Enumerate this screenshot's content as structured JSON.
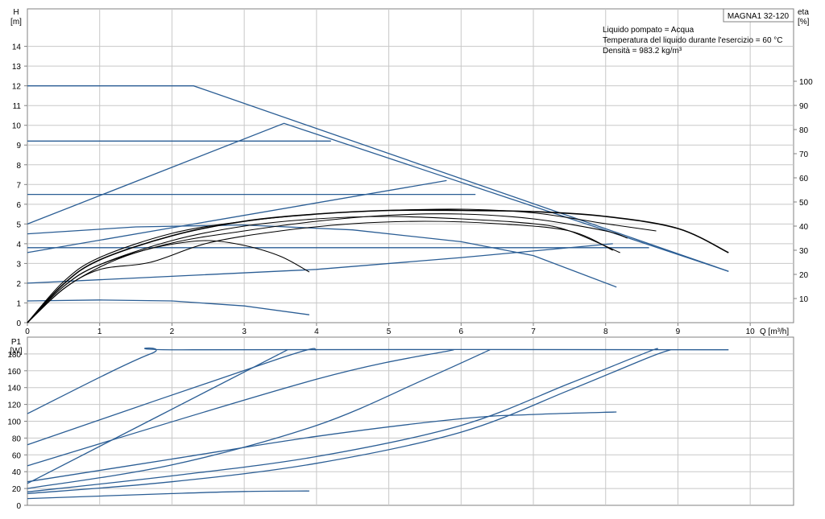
{
  "model_label": "MAGNA1 32-120",
  "info_lines": [
    "Liquido pompato = Acqua",
    "Temperatura del liquido durante l'esercizio = 60 °C",
    "Densità = 983.2 kg/m³"
  ],
  "colors": {
    "blue": "#2a5d94",
    "black": "#000000",
    "grid": "#c8c8c8",
    "frame": "#808080"
  },
  "chart_data": [
    {
      "type": "line",
      "title": "",
      "ylabel_lines": [
        "H",
        "[m]"
      ],
      "y2label_lines": [
        "eta",
        "[%]"
      ],
      "xlabel": "Q [m³/h]",
      "xlim": [
        0,
        10.6
      ],
      "ylim": [
        0,
        15.9
      ],
      "y2lim": [
        0,
        130
      ],
      "x_ticks": [
        "0",
        "1",
        "2",
        "3",
        "4",
        "5",
        "6",
        "7",
        "8",
        "9",
        "10"
      ],
      "y_ticks": [
        "0",
        "1",
        "2",
        "3",
        "4",
        "5",
        "6",
        "7",
        "8",
        "9",
        "10",
        "11",
        "12",
        "13",
        "14"
      ],
      "y2_ticks": [
        "10",
        "20",
        "30",
        "40",
        "50",
        "60",
        "70",
        "80",
        "90",
        "100"
      ],
      "grid": true,
      "head_curves": [
        {
          "points": [
            [
              0,
              12.0
            ],
            [
              2.3,
              12.0
            ],
            [
              9.7,
              2.6
            ]
          ]
        },
        {
          "points": [
            [
              0,
              9.2
            ],
            [
              4.2,
              9.2
            ]
          ]
        },
        {
          "points": [
            [
              0,
              5.0
            ],
            [
              3.55,
              10.1
            ],
            [
              9.7,
              2.6
            ]
          ]
        },
        {
          "points": [
            [
              0,
              6.5
            ],
            [
              6.2,
              6.5
            ]
          ]
        },
        {
          "points": [
            [
              0,
              3.55
            ],
            [
              5.8,
              7.2
            ]
          ]
        },
        {
          "points": [
            [
              0,
              4.5
            ],
            [
              1.5,
              4.85
            ],
            [
              3,
              4.95
            ],
            [
              4.5,
              4.7
            ],
            [
              6,
              4.1
            ],
            [
              7,
              3.4
            ],
            [
              8.15,
              1.8
            ]
          ]
        },
        {
          "points": [
            [
              0,
              3.8
            ],
            [
              8.6,
              3.8
            ]
          ]
        },
        {
          "points": [
            [
              0,
              2.0
            ],
            [
              4,
              2.7
            ],
            [
              6,
              3.3
            ],
            [
              8.1,
              4.0
            ]
          ]
        },
        {
          "points": [
            [
              0,
              1.1
            ],
            [
              1,
              1.15
            ],
            [
              2,
              1.1
            ],
            [
              3,
              0.85
            ],
            [
              3.9,
              0.4
            ]
          ]
        }
      ],
      "efficiency_curves": [
        {
          "points": [
            [
              0,
              0
            ],
            [
              0.5,
              14
            ],
            [
              1,
              23
            ],
            [
              1.5,
              29
            ],
            [
              2,
              32.5
            ],
            [
              2.5,
              34
            ],
            [
              3,
              32
            ],
            [
              3.5,
              27.5
            ],
            [
              3.9,
              21
            ]
          ]
        },
        {
          "points": [
            [
              0,
              0
            ],
            [
              0.5,
              15
            ],
            [
              1,
              24
            ],
            [
              2,
              34
            ],
            [
              3,
              40
            ],
            [
              4,
              43
            ],
            [
              5,
              44
            ],
            [
              6,
              43
            ],
            [
              7,
              41
            ],
            [
              7.5,
              38
            ],
            [
              8.2,
              29
            ]
          ]
        },
        {
          "points": [
            [
              0,
              0
            ],
            [
              0.5,
              17
            ],
            [
              1,
              27
            ],
            [
              2,
              37
            ],
            [
              3,
              42
            ],
            [
              4,
              45
            ],
            [
              5,
              46.5
            ],
            [
              6,
              47
            ],
            [
              7,
              45.5
            ],
            [
              8,
              41
            ],
            [
              8.7,
              38
            ]
          ]
        },
        {
          "points": [
            [
              0,
              0
            ],
            [
              0.5,
              16
            ],
            [
              1,
              26
            ],
            [
              2,
              36
            ],
            [
              3,
              42
            ],
            [
              4,
              45
            ],
            [
              5,
              46.5
            ],
            [
              6,
              46.5
            ],
            [
              7,
              46
            ],
            [
              8,
              44
            ],
            [
              9,
              39
            ],
            [
              9.7,
              29
            ]
          ]
        },
        {
          "points": [
            [
              0,
              0
            ],
            [
              0.5,
              15
            ],
            [
              1,
              24
            ],
            [
              2,
              33
            ],
            [
              3,
              38
            ],
            [
              4,
              42
            ],
            [
              5,
              44.5
            ],
            [
              6,
              45
            ],
            [
              7,
              43
            ],
            [
              8,
              38
            ],
            [
              8.3,
              35
            ]
          ]
        },
        {
          "points": [
            [
              0,
              0
            ],
            [
              0.5,
              14
            ],
            [
              1,
              22
            ],
            [
              1.7,
              25
            ],
            [
              2.5,
              33
            ],
            [
              3.5,
              38
            ],
            [
              4.5,
              41
            ],
            [
              5.5,
              42
            ],
            [
              6.5,
              41
            ],
            [
              7.5,
              38
            ],
            [
              8.1,
              30
            ]
          ]
        }
      ]
    },
    {
      "type": "line",
      "title": "",
      "ylabel_lines": [
        "P1",
        "[W]"
      ],
      "xlim": [
        0,
        10.6
      ],
      "ylim": [
        0,
        200
      ],
      "y_ticks": [
        "0",
        "20",
        "40",
        "60",
        "80",
        "100",
        "120",
        "140",
        "160",
        "180"
      ],
      "grid": true,
      "power_curves": [
        {
          "points": [
            [
              0,
              109
            ],
            [
              1.7,
              180
            ],
            [
              2.3,
              185
            ],
            [
              9.7,
              185
            ]
          ]
        },
        {
          "points": [
            [
              0,
              72
            ],
            [
              3.5,
              175
            ],
            [
              4.0,
              185
            ]
          ]
        },
        {
          "points": [
            [
              0,
              47
            ],
            [
              4.0,
              150
            ],
            [
              5.9,
              185
            ]
          ]
        },
        {
          "points": [
            [
              0,
              26
            ],
            [
              3.6,
              185
            ]
          ]
        },
        {
          "points": [
            [
              0,
              20
            ],
            [
              2,
              48
            ],
            [
              4,
              95
            ],
            [
              5.5,
              150
            ],
            [
              6.4,
              185
            ]
          ]
        },
        {
          "points": [
            [
              0,
              28
            ],
            [
              2,
              55
            ],
            [
              4,
              82
            ],
            [
              6,
              103
            ],
            [
              7,
              108
            ],
            [
              8.15,
              111
            ]
          ]
        },
        {
          "points": [
            [
              0,
              16
            ],
            [
              2,
              35
            ],
            [
              4,
              58
            ],
            [
              6,
              95
            ],
            [
              7.5,
              145
            ],
            [
              8.6,
              183
            ],
            [
              8.7,
              185
            ]
          ]
        },
        {
          "points": [
            [
              0,
              14
            ],
            [
              2,
              28
            ],
            [
              4,
              50
            ],
            [
              6,
              87
            ],
            [
              7.5,
              137
            ],
            [
              8.6,
              176
            ],
            [
              8.9,
              185
            ]
          ]
        },
        {
          "points": [
            [
              0,
              8
            ],
            [
              2,
              14
            ],
            [
              3,
              16.5
            ],
            [
              3.9,
              17
            ]
          ]
        }
      ]
    }
  ]
}
